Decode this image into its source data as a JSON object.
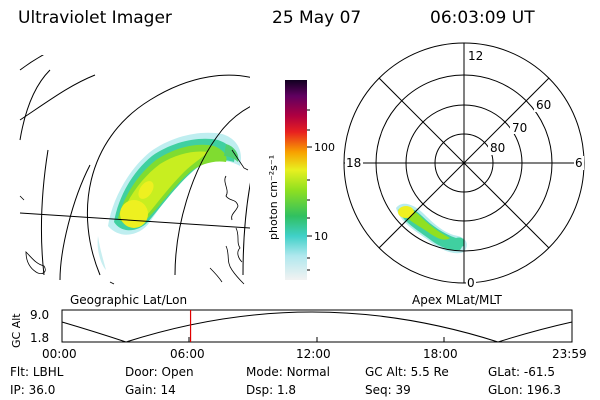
{
  "header": {
    "instrument": "Ultraviolet Imager",
    "date": "25 May 07",
    "time": "06:03:09 UT"
  },
  "colorbar": {
    "unit_label": "photon cm⁻²s⁻¹",
    "ticks": [
      "100",
      "10"
    ]
  },
  "left_panel": {
    "caption": "Geographic Lat/Lon"
  },
  "right_panel": {
    "caption": "Apex MLat/MLT",
    "mlt_labels": {
      "top": "12",
      "left": "18",
      "right": "6",
      "bottom": "0"
    },
    "lat_labels": [
      "60",
      "70",
      "80"
    ]
  },
  "altitude_plot": {
    "ylabel": "GC Alt",
    "yticks": [
      "9.0",
      "1.8"
    ],
    "xticks": [
      "00:00",
      "06:00",
      "12:00",
      "18:00",
      "23:59"
    ],
    "current_time_hours": 6.05
  },
  "info": {
    "row1": [
      {
        "key": "Flt:",
        "value": "LBHL"
      },
      {
        "key": "Door:",
        "value": "Open"
      },
      {
        "key": "Mode:",
        "value": "Normal"
      },
      {
        "key": "GC Alt:",
        "value": "5.5 Re"
      },
      {
        "key": "GLat:",
        "value": "-61.5"
      }
    ],
    "row2": [
      {
        "key": "IP:",
        "value": "36.0"
      },
      {
        "key": "Gain:",
        "value": "14"
      },
      {
        "key": "Dsp:",
        "value": "1.8"
      },
      {
        "key": "Seq:",
        "value": "39"
      },
      {
        "key": "GLon:",
        "value": "196.3"
      }
    ]
  },
  "colors": {
    "marker": "#e00000"
  }
}
